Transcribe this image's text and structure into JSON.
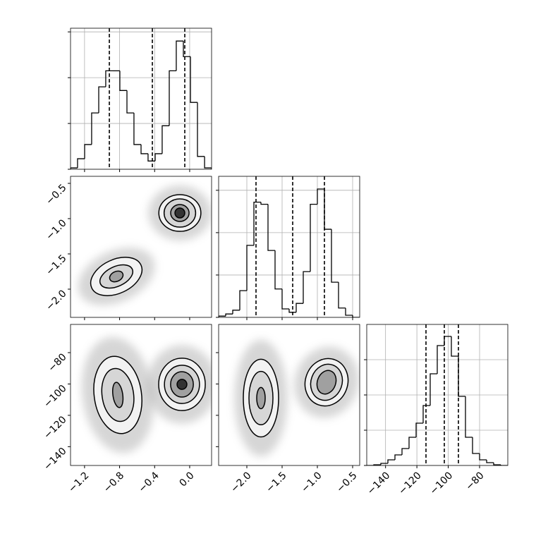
{
  "chart_data": [
    {
      "type": "histogram",
      "xlim": [
        -1.36,
        0.25
      ],
      "ylim": [
        0,
        3.08
      ],
      "xticks": [
        -1.2,
        -0.8,
        -0.4,
        0
      ],
      "yticks": [
        0,
        1,
        2,
        3
      ],
      "grid": true,
      "show_xtick_labels": false,
      "show_ytick_labels": false,
      "bins": [
        -1.36,
        -1.28,
        -1.199,
        -1.119,
        -1.038,
        -0.958,
        -0.877,
        -0.797,
        -0.716,
        -0.636,
        -0.555,
        -0.475,
        -0.394,
        -0.314,
        -0.233,
        -0.153,
        -0.072,
        0.009,
        0.089,
        0.17,
        0.25
      ],
      "counts": [
        0.03,
        0.23,
        0.54,
        1.23,
        1.8,
        2.15,
        2.15,
        1.72,
        1.23,
        0.54,
        0.34,
        0.18,
        0.34,
        0.95,
        2.15,
        2.8,
        2.46,
        1.46,
        0.28,
        0.03
      ],
      "quantiles": [
        -0.917,
        -0.426,
        -0.056
      ],
      "color": "#000000"
    },
    {
      "type": "contour",
      "xlim": [
        -1.36,
        0.25
      ],
      "ylim": [
        -2.4,
        -0.4
      ],
      "xticks": [
        -1.2,
        -0.8,
        -0.4,
        0
      ],
      "yticks": [
        {
          "value": -0.5,
          "label": "−0.5"
        },
        {
          "value": -1.0,
          "label": "−1.0"
        },
        {
          "value": -1.5,
          "label": "−1.5"
        },
        {
          "value": -2.0,
          "label": "−2.0"
        }
      ],
      "grid": false,
      "show_xtick_labels": false,
      "show_ytick_labels": true,
      "clusters": [
        {
          "rotation": 0,
          "contours": [
            {
              "cx": -0.112,
              "cy": -0.92,
              "rx": 0.24,
              "ry": 0.26
            },
            {
              "cx": -0.112,
              "cy": -0.92,
              "rx": 0.18,
              "ry": 0.2
            },
            {
              "cx": -0.112,
              "cy": -0.92,
              "rx": 0.105,
              "ry": 0.12
            },
            {
              "cx": -0.112,
              "cy": -0.92,
              "rx": 0.056,
              "ry": 0.07
            }
          ]
        },
        {
          "rotation": -25,
          "contours": [
            {
              "cx": -0.837,
              "cy": -1.82,
              "rx": 0.31,
              "ry": 0.24
            },
            {
              "cx": -0.837,
              "cy": -1.82,
              "rx": 0.2,
              "ry": 0.14
            },
            {
              "cx": -0.837,
              "cy": -1.82,
              "rx": 0.08,
              "ry": 0.07
            }
          ]
        }
      ]
    },
    {
      "type": "histogram",
      "xlim": [
        -2.4,
        -0.4
      ],
      "ylim": [
        0,
        3.33
      ],
      "xticks": [
        -2.0,
        -1.5,
        -1.0,
        -0.5
      ],
      "yticks": [
        0,
        1,
        2,
        3
      ],
      "grid": true,
      "show_xtick_labels": false,
      "show_ytick_labels": false,
      "bins": [
        -2.4,
        -2.3,
        -2.2,
        -2.1,
        -2.0,
        -1.9,
        -1.8,
        -1.7,
        -1.6,
        -1.5,
        -1.4,
        -1.3,
        -1.2,
        -1.1,
        -1.0,
        -0.9,
        -0.8,
        -0.7,
        -0.6,
        -0.5,
        -0.4
      ],
      "counts": [
        0.03,
        0.08,
        0.17,
        0.63,
        1.7,
        2.72,
        2.67,
        1.58,
        0.67,
        0.2,
        0.12,
        0.33,
        1.08,
        2.67,
        3.03,
        2.08,
        0.83,
        0.22,
        0.05,
        0
      ],
      "quantiles": [
        -1.87,
        -1.35,
        -0.9
      ],
      "color": "#000000"
    },
    {
      "type": "contour",
      "xlim": [
        -1.36,
        0.25
      ],
      "ylim": [
        -152,
        -62
      ],
      "xticks": [
        {
          "value": -1.2,
          "label": "−1.2"
        },
        {
          "value": -0.8,
          "label": "−0.8"
        },
        {
          "value": -0.4,
          "label": "−0.4"
        },
        {
          "value": 0,
          "label": "0.0"
        }
      ],
      "yticks": [
        {
          "value": -80,
          "label": "−80"
        },
        {
          "value": -100,
          "label": "−100"
        },
        {
          "value": -120,
          "label": "−120"
        },
        {
          "value": -140,
          "label": "−140"
        }
      ],
      "grid": false,
      "show_xtick_labels": true,
      "show_ytick_labels": true,
      "clusters": [
        {
          "rotation": 0,
          "contours": [
            {
              "cx": -0.088,
              "cy": -100.25,
              "rx": 0.266,
              "ry": 16.7
            },
            {
              "cx": -0.088,
              "cy": -100.25,
              "rx": 0.2,
              "ry": 12.2
            },
            {
              "cx": -0.088,
              "cy": -100.25,
              "rx": 0.13,
              "ry": 8.1
            },
            {
              "cx": -0.088,
              "cy": -100.25,
              "rx": 0.056,
              "ry": 3.2
            }
          ]
        },
        {
          "rotation": -8,
          "contours": [
            {
              "cx": -0.82,
              "cy": -107,
              "rx": 0.27,
              "ry": 24.8
            },
            {
              "cx": -0.82,
              "cy": -107,
              "rx": 0.18,
              "ry": 17
            },
            {
              "cx": -0.82,
              "cy": -107,
              "rx": 0.056,
              "ry": 8.1
            }
          ]
        }
      ]
    },
    {
      "type": "contour",
      "xlim": [
        -2.4,
        -0.4
      ],
      "ylim": [
        -152,
        -62
      ],
      "xticks": [
        {
          "value": -2.0,
          "label": "−2.0"
        },
        {
          "value": -1.5,
          "label": "−1.5"
        },
        {
          "value": -1.0,
          "label": "−1.0"
        },
        {
          "value": -0.5,
          "label": "−0.5"
        }
      ],
      "yticks": [
        -80,
        -100,
        -120,
        -140
      ],
      "grid": false,
      "show_xtick_labels": true,
      "show_ytick_labels": false,
      "clusters": [
        {
          "rotation": 20,
          "contours": [
            {
              "cx": -0.87,
              "cy": -98.9,
              "rx": 0.3,
              "ry": 15.3
            },
            {
              "cx": -0.87,
              "cy": -98.9,
              "rx": 0.22,
              "ry": 11.7
            },
            {
              "cx": -0.87,
              "cy": -98.9,
              "rx": 0.13,
              "ry": 7.7
            }
          ]
        },
        {
          "rotation": 0,
          "contours": [
            {
              "cx": -1.8,
              "cy": -109,
              "rx": 0.25,
              "ry": 24.8
            },
            {
              "cx": -1.8,
              "cy": -109,
              "rx": 0.17,
              "ry": 17
            },
            {
              "cx": -1.8,
              "cy": -109,
              "rx": 0.06,
              "ry": 6.8
            }
          ]
        }
      ]
    },
    {
      "type": "histogram",
      "xlim": [
        -152,
        -62
      ],
      "ylim": [
        0,
        4
      ],
      "xticks": [
        {
          "value": -140,
          "label": "−140"
        },
        {
          "value": -120,
          "label": "−120"
        },
        {
          "value": -100,
          "label": "−100"
        },
        {
          "value": -80,
          "label": "−80"
        }
      ],
      "yticks": [
        0,
        1,
        2,
        3
      ],
      "grid": true,
      "show_xtick_labels": true,
      "show_ytick_labels": false,
      "bins": [
        -152,
        -147.5,
        -143,
        -138.5,
        -134,
        -129.5,
        -125,
        -120.5,
        -116,
        -111.5,
        -107,
        -102.5,
        -98,
        -93.5,
        -89,
        -84.5,
        -80,
        -75.5,
        -71,
        -66.5,
        -62
      ],
      "counts": [
        0,
        0.02,
        0.06,
        0.16,
        0.3,
        0.48,
        0.8,
        1.2,
        1.7,
        2.6,
        3.4,
        3.66,
        3.1,
        1.96,
        0.8,
        0.34,
        0.16,
        0.08,
        0.02,
        0
      ],
      "quantiles": [
        -114.2,
        -102.5,
        -93.5
      ],
      "color": "#000000"
    }
  ]
}
